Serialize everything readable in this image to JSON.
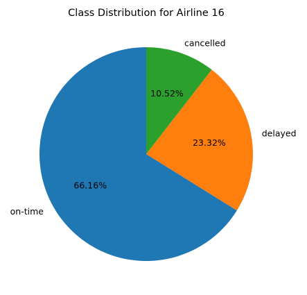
{
  "chart_data": {
    "type": "pie",
    "title": "Class Distribution for Airline 16",
    "categories": [
      "on-time",
      "delayed",
      "cancelled"
    ],
    "values": [
      66.16,
      23.32,
      10.52
    ],
    "percent_labels": [
      "66.16%",
      "23.32%",
      "10.52%"
    ],
    "colors": [
      "#1f77b4",
      "#ff7f0e",
      "#2ca02c"
    ],
    "start_angle_deg": 90,
    "direction": "counterclockwise",
    "legend": "none"
  }
}
